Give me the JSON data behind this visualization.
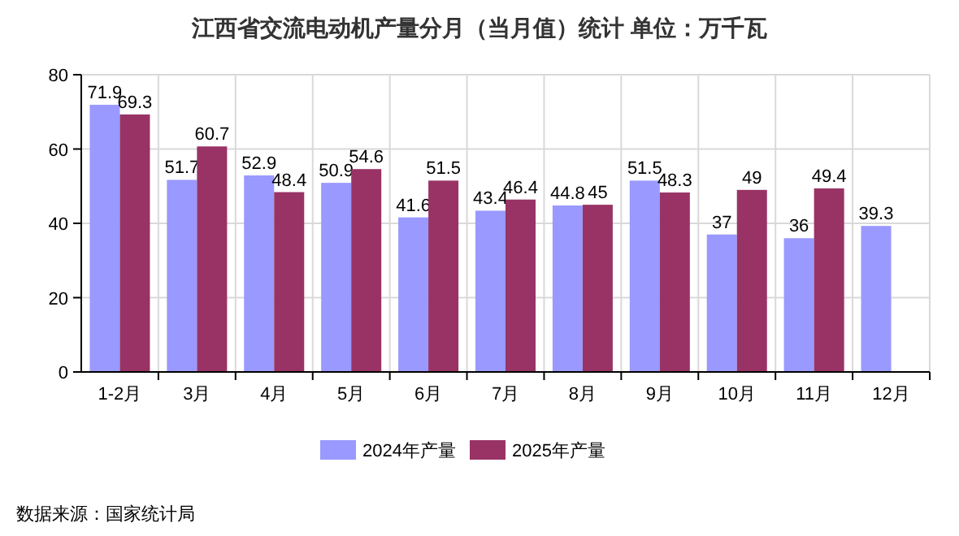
{
  "chart_data": {
    "type": "bar",
    "title": "江西省交流电动机产量分月（当月值）统计 单位：万千瓦",
    "categories": [
      "1-2月",
      "3月",
      "4月",
      "5月",
      "6月",
      "7月",
      "8月",
      "9月",
      "10月",
      "11月",
      "12月"
    ],
    "series": [
      {
        "name": "2024年产量",
        "color": "#9999ff",
        "values": [
          71.9,
          51.7,
          52.9,
          50.9,
          41.6,
          43.4,
          44.8,
          51.5,
          37,
          36,
          39.3
        ]
      },
      {
        "name": "2025年产量",
        "color": "#993366",
        "values": [
          69.3,
          60.7,
          48.4,
          54.6,
          51.5,
          46.4,
          45,
          48.3,
          49,
          49.4,
          null
        ]
      }
    ],
    "ylim": [
      0,
      80
    ],
    "yticks": [
      0,
      20,
      40,
      60,
      80
    ],
    "grid": true,
    "legend": "bottom",
    "data_labels": true,
    "annotations": [
      "数据来源：国家统计局"
    ]
  }
}
